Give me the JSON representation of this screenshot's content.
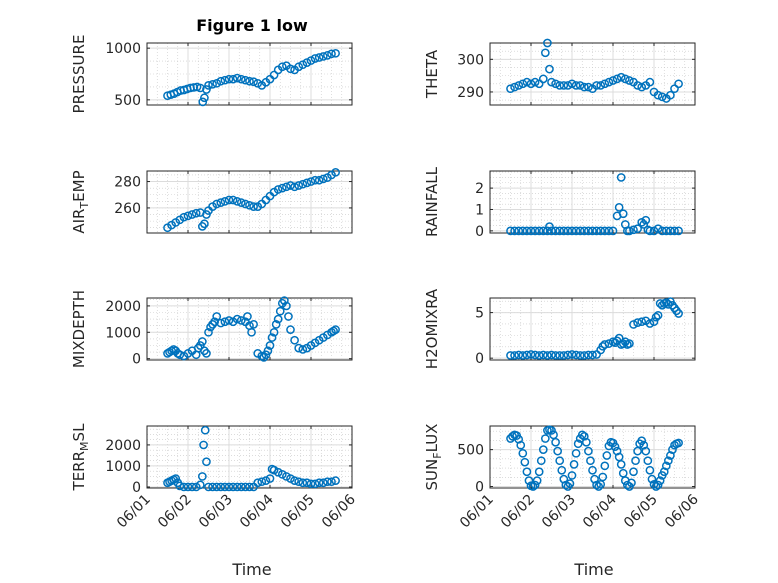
{
  "figure": {
    "title": "Figure 1 low",
    "xlabel": "Time",
    "marker_color": "#0072BD"
  },
  "chart_data": [
    {
      "type": "scatter",
      "ylabel": "PRESSURE",
      "title": "Figure 1 low",
      "xticks": [
        "06/01",
        "06/02",
        "06/03",
        "06/04",
        "06/05",
        "06/06"
      ],
      "xlim": [
        0,
        5
      ],
      "ylim": [
        450,
        1050
      ],
      "yticks": [
        500,
        1000
      ],
      "grid": true,
      "series": [
        {
          "x": [
            0.5,
            0.58,
            0.66,
            0.74,
            0.82,
            0.9,
            0.98,
            1.06,
            1.14,
            1.22,
            1.3,
            1.36,
            1.4,
            1.45,
            1.5,
            1.6,
            1.7,
            1.8,
            1.9,
            2.0,
            2.1,
            2.2,
            2.3,
            2.4,
            2.5,
            2.6,
            2.7,
            2.8,
            2.9,
            3.0,
            3.1,
            3.2,
            3.3,
            3.4,
            3.5,
            3.6,
            3.7,
            3.8,
            3.9,
            4.0,
            4.1,
            4.2,
            4.3,
            4.4,
            4.5,
            4.6
          ],
          "y": [
            540,
            550,
            560,
            575,
            590,
            595,
            605,
            615,
            620,
            625,
            615,
            480,
            520,
            600,
            640,
            650,
            660,
            680,
            690,
            700,
            700,
            710,
            700,
            690,
            680,
            675,
            660,
            640,
            670,
            700,
            740,
            790,
            820,
            830,
            800,
            790,
            820,
            840,
            860,
            880,
            900,
            910,
            920,
            930,
            945,
            950
          ]
        }
      ]
    },
    {
      "type": "scatter",
      "ylabel": "THETA",
      "xticks": [
        "06/01",
        "06/02",
        "06/03",
        "06/04",
        "06/05",
        "06/06"
      ],
      "xlim": [
        0,
        5
      ],
      "ylim": [
        286,
        305
      ],
      "yticks": [
        290,
        300
      ],
      "grid": true,
      "series": [
        {
          "x": [
            0.5,
            0.6,
            0.7,
            0.8,
            0.9,
            1.0,
            1.1,
            1.2,
            1.3,
            1.35,
            1.4,
            1.45,
            1.5,
            1.6,
            1.7,
            1.8,
            1.9,
            2.0,
            2.1,
            2.2,
            2.3,
            2.4,
            2.5,
            2.6,
            2.7,
            2.8,
            2.9,
            3.0,
            3.1,
            3.2,
            3.3,
            3.4,
            3.5,
            3.6,
            3.7,
            3.8,
            3.9,
            4.0,
            4.1,
            4.2,
            4.3,
            4.4,
            4.5,
            4.6
          ],
          "y": [
            291,
            291.5,
            292,
            292.5,
            293,
            292.5,
            293,
            292.5,
            294,
            302,
            305,
            297,
            293,
            292.5,
            292,
            292,
            292,
            292.5,
            292,
            292,
            291.5,
            291.5,
            291,
            292,
            292,
            292.5,
            293,
            293.5,
            294,
            294.5,
            294,
            293.5,
            293,
            292,
            291.5,
            292,
            293,
            290,
            289,
            288.5,
            288,
            289,
            291,
            292.5
          ]
        }
      ]
    },
    {
      "type": "scatter",
      "ylabel": "AIR_T_EMP",
      "xticks": [
        "06/01",
        "06/02",
        "06/03",
        "06/04",
        "06/05",
        "06/06"
      ],
      "xlim": [
        0,
        5
      ],
      "ylim": [
        241,
        288
      ],
      "yticks": [
        260,
        280
      ],
      "grid": true,
      "series": [
        {
          "x": [
            0.5,
            0.6,
            0.7,
            0.8,
            0.9,
            1.0,
            1.1,
            1.2,
            1.3,
            1.35,
            1.4,
            1.45,
            1.5,
            1.6,
            1.7,
            1.8,
            1.9,
            2.0,
            2.1,
            2.2,
            2.3,
            2.4,
            2.5,
            2.6,
            2.7,
            2.8,
            2.9,
            3.0,
            3.1,
            3.2,
            3.3,
            3.4,
            3.5,
            3.6,
            3.7,
            3.8,
            3.9,
            4.0,
            4.1,
            4.2,
            4.3,
            4.4,
            4.5,
            4.6
          ],
          "y": [
            245,
            247,
            249,
            251,
            253,
            254,
            255,
            256,
            256.5,
            246,
            248,
            255,
            258,
            261,
            263,
            264,
            265,
            266,
            266,
            265,
            264,
            263,
            262,
            261,
            261,
            263,
            266,
            269,
            272,
            274,
            275,
            276,
            277,
            276,
            277,
            278,
            279,
            280,
            281,
            281,
            282,
            283,
            285,
            287
          ]
        }
      ]
    },
    {
      "type": "scatter",
      "ylabel": "RAINFALL",
      "xticks": [
        "06/01",
        "06/02",
        "06/03",
        "06/04",
        "06/05",
        "06/06"
      ],
      "xlim": [
        0,
        5
      ],
      "ylim": [
        -0.1,
        2.8
      ],
      "yticks": [
        0,
        1,
        2
      ],
      "grid": true,
      "series": [
        {
          "x": [
            0.5,
            0.6,
            0.7,
            0.8,
            0.9,
            1.0,
            1.1,
            1.2,
            1.3,
            1.4,
            1.45,
            1.5,
            1.6,
            1.7,
            1.8,
            1.9,
            2.0,
            2.1,
            2.2,
            2.3,
            2.4,
            2.5,
            2.6,
            2.7,
            2.8,
            2.9,
            3.0,
            3.1,
            3.15,
            3.2,
            3.25,
            3.3,
            3.35,
            3.4,
            3.5,
            3.6,
            3.7,
            3.75,
            3.8,
            3.85,
            3.9,
            4.0,
            4.1,
            4.2,
            4.3,
            4.4,
            4.5,
            4.6
          ],
          "y": [
            0,
            0,
            0,
            0,
            0,
            0,
            0,
            0,
            0,
            0,
            0.2,
            0,
            0,
            0,
            0,
            0,
            0,
            0,
            0,
            0,
            0,
            0,
            0,
            0,
            0,
            0,
            0,
            0.7,
            1.1,
            2.5,
            0.8,
            0.3,
            0,
            0,
            0.05,
            0.1,
            0.4,
            0.3,
            0.5,
            0.05,
            0,
            0,
            0.1,
            0,
            0,
            0,
            0,
            0
          ]
        }
      ]
    },
    {
      "type": "scatter",
      "ylabel": "MIXDEPTH",
      "xticks": [
        "06/01",
        "06/02",
        "06/03",
        "06/04",
        "06/05",
        "06/06"
      ],
      "xlim": [
        0,
        5
      ],
      "ylim": [
        -50,
        2300
      ],
      "yticks": [
        0,
        1000,
        2000
      ],
      "grid": true,
      "series": [
        {
          "x": [
            0.5,
            0.55,
            0.6,
            0.65,
            0.7,
            0.75,
            0.8,
            0.9,
            1.0,
            1.1,
            1.2,
            1.25,
            1.3,
            1.35,
            1.4,
            1.45,
            1.5,
            1.55,
            1.6,
            1.65,
            1.7,
            1.8,
            1.9,
            2.0,
            2.1,
            2.2,
            2.3,
            2.4,
            2.45,
            2.5,
            2.55,
            2.6,
            2.7,
            2.8,
            2.85,
            2.9,
            2.95,
            3.0,
            3.05,
            3.1,
            3.15,
            3.2,
            3.25,
            3.3,
            3.35,
            3.4,
            3.45,
            3.5,
            3.6,
            3.7,
            3.8,
            3.9,
            4.0,
            4.1,
            4.2,
            4.3,
            4.4,
            4.5,
            4.55,
            4.6
          ],
          "y": [
            200,
            250,
            300,
            350,
            300,
            200,
            150,
            100,
            200,
            300,
            150,
            400,
            500,
            650,
            300,
            200,
            1000,
            1200,
            1300,
            1400,
            1600,
            1350,
            1400,
            1450,
            1400,
            1500,
            1450,
            1400,
            1600,
            1250,
            1000,
            1300,
            200,
            100,
            50,
            150,
            300,
            500,
            800,
            1000,
            1300,
            1500,
            1800,
            2100,
            2200,
            2000,
            1600,
            1100,
            700,
            400,
            350,
            400,
            500,
            600,
            700,
            800,
            900,
            1000,
            1050,
            1100
          ]
        }
      ]
    },
    {
      "type": "scatter",
      "ylabel": "H2OMIXRA",
      "xticks": [
        "06/01",
        "06/02",
        "06/03",
        "06/04",
        "06/05",
        "06/06"
      ],
      "xlim": [
        0,
        5
      ],
      "ylim": [
        -0.2,
        6.6
      ],
      "yticks": [
        0,
        5
      ],
      "grid": true,
      "series": [
        {
          "x": [
            0.5,
            0.6,
            0.7,
            0.8,
            0.9,
            1.0,
            1.1,
            1.2,
            1.3,
            1.4,
            1.5,
            1.6,
            1.7,
            1.8,
            1.9,
            2.0,
            2.1,
            2.2,
            2.3,
            2.4,
            2.5,
            2.6,
            2.7,
            2.75,
            2.8,
            2.9,
            3.0,
            3.05,
            3.1,
            3.15,
            3.2,
            3.25,
            3.3,
            3.35,
            3.4,
            3.5,
            3.6,
            3.7,
            3.8,
            3.9,
            4.0,
            4.05,
            4.1,
            4.15,
            4.2,
            4.25,
            4.3,
            4.35,
            4.4,
            4.45,
            4.5,
            4.55,
            4.6
          ],
          "y": [
            0.3,
            0.3,
            0.35,
            0.3,
            0.35,
            0.4,
            0.35,
            0.3,
            0.35,
            0.3,
            0.35,
            0.3,
            0.3,
            0.3,
            0.35,
            0.4,
            0.35,
            0.3,
            0.3,
            0.35,
            0.35,
            0.4,
            0.9,
            1.3,
            1.5,
            1.6,
            1.8,
            1.7,
            1.9,
            2.2,
            1.5,
            1.6,
            1.8,
            1.5,
            1.6,
            3.7,
            3.9,
            4.0,
            4.1,
            3.8,
            4.0,
            4.5,
            4.7,
            6.0,
            5.8,
            6.0,
            6.1,
            5.9,
            6.2,
            5.8,
            5.5,
            5.2,
            4.9
          ]
        }
      ]
    },
    {
      "type": "scatter",
      "ylabel": "TERR_M_SL",
      "xticks": [
        "06/01",
        "06/02",
        "06/03",
        "06/04",
        "06/05",
        "06/06"
      ],
      "xlim": [
        0,
        5
      ],
      "ylim": [
        -50,
        2900
      ],
      "yticks": [
        0,
        1000,
        2000
      ],
      "grid": true,
      "series": [
        {
          "x": [
            0.5,
            0.55,
            0.6,
            0.65,
            0.7,
            0.75,
            0.8,
            0.9,
            1.0,
            1.1,
            1.2,
            1.3,
            1.35,
            1.38,
            1.42,
            1.45,
            1.5,
            1.6,
            1.7,
            1.8,
            1.9,
            2.0,
            2.1,
            2.2,
            2.3,
            2.4,
            2.5,
            2.6,
            2.7,
            2.8,
            2.9,
            3.0,
            3.05,
            3.1,
            3.2,
            3.3,
            3.4,
            3.5,
            3.6,
            3.7,
            3.8,
            3.9,
            4.0,
            4.1,
            4.2,
            4.3,
            4.4,
            4.5,
            4.6
          ],
          "y": [
            200,
            250,
            300,
            350,
            400,
            200,
            50,
            0,
            0,
            0,
            0,
            100,
            500,
            2000,
            2700,
            1200,
            0,
            0,
            0,
            0,
            0,
            0,
            0,
            0,
            0,
            0,
            0,
            0,
            200,
            250,
            300,
            400,
            850,
            800,
            700,
            600,
            500,
            400,
            300,
            250,
            200,
            200,
            150,
            150,
            200,
            200,
            250,
            250,
            300
          ]
        }
      ]
    },
    {
      "type": "scatter",
      "ylabel": "SUN_F_LUX",
      "xticks": [
        "06/01",
        "06/02",
        "06/03",
        "06/04",
        "06/05",
        "06/06"
      ],
      "xlim": [
        0,
        5
      ],
      "ylim": [
        -20,
        820
      ],
      "yticks": [
        0,
        500
      ],
      "grid": true,
      "series": [
        {
          "x": [
            0.5,
            0.55,
            0.6,
            0.65,
            0.7,
            0.75,
            0.8,
            0.85,
            0.9,
            0.95,
            1.0,
            1.05,
            1.1,
            1.15,
            1.2,
            1.25,
            1.3,
            1.35,
            1.4,
            1.45,
            1.5,
            1.55,
            1.6,
            1.65,
            1.7,
            1.75,
            1.8,
            1.85,
            1.9,
            1.95,
            2.0,
            2.05,
            2.1,
            2.15,
            2.2,
            2.25,
            2.3,
            2.35,
            2.4,
            2.45,
            2.5,
            2.55,
            2.6,
            2.65,
            2.7,
            2.75,
            2.8,
            2.85,
            2.9,
            2.95,
            3.0,
            3.05,
            3.1,
            3.15,
            3.2,
            3.25,
            3.3,
            3.35,
            3.4,
            3.45,
            3.5,
            3.55,
            3.6,
            3.65,
            3.7,
            3.75,
            3.8,
            3.85,
            3.9,
            3.95,
            4.0,
            4.05,
            4.1,
            4.15,
            4.2,
            4.25,
            4.3,
            4.35,
            4.4,
            4.45,
            4.5,
            4.55,
            4.6
          ],
          "y": [
            650,
            680,
            700,
            690,
            640,
            560,
            450,
            330,
            200,
            80,
            10,
            0,
            20,
            80,
            200,
            350,
            500,
            650,
            760,
            770,
            760,
            700,
            600,
            480,
            350,
            220,
            100,
            20,
            0,
            40,
            150,
            300,
            450,
            580,
            650,
            700,
            680,
            600,
            480,
            350,
            220,
            100,
            20,
            0,
            30,
            130,
            280,
            420,
            550,
            600,
            590,
            540,
            480,
            400,
            300,
            180,
            80,
            20,
            0,
            50,
            200,
            350,
            480,
            580,
            620,
            560,
            480,
            350,
            220,
            100,
            30,
            0,
            20,
            80,
            150,
            200,
            280,
            350,
            420,
            500,
            560,
            580,
            590
          ]
        }
      ]
    }
  ]
}
